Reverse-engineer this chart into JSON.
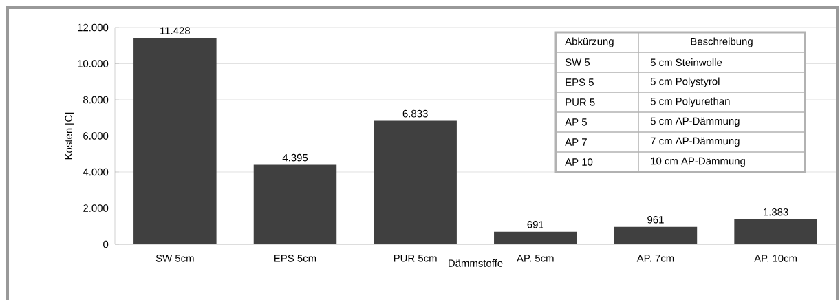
{
  "chart_data": {
    "type": "bar",
    "xlabel": "Dämmstoffe",
    "ylabel": "Kosten [C]",
    "categories": [
      "SW 5cm",
      "EPS 5cm",
      "PUR 5cm",
      "AP. 5cm",
      "AP. 7cm",
      "AP. 10cm"
    ],
    "values": [
      11428,
      4395,
      6833,
      691,
      961,
      1383
    ],
    "value_labels": [
      "11.428",
      "4.395",
      "6.833",
      "691",
      "961",
      "1.383"
    ],
    "color": "#404040",
    "ylim": [
      0,
      12000
    ],
    "yticks": [
      0,
      {
        "value": 2000,
        "label": "2.000"
      },
      {
        "value": 4000,
        "label": "4.000"
      },
      {
        "value": 6000,
        "label": "6.000"
      },
      {
        "value": 8000,
        "label": "8.000"
      },
      {
        "value": 10000,
        "label": "10.000"
      },
      {
        "value": 12000,
        "label": "12.000"
      }
    ],
    "grid": "y",
    "annotations": [
      "Abkürzung",
      "Beschreibung",
      "SW 5",
      "5 cm Steinwolle",
      "EPS 5",
      "5 cm Polystyrol",
      "PUR 5",
      "5 cm Polyurethan",
      "AP 5",
      "5 cm AP-Dämmung",
      "AP 7",
      "7 cm AP-Dämmung",
      "AP 10",
      "10 cm AP-Dämmung"
    ]
  }
}
